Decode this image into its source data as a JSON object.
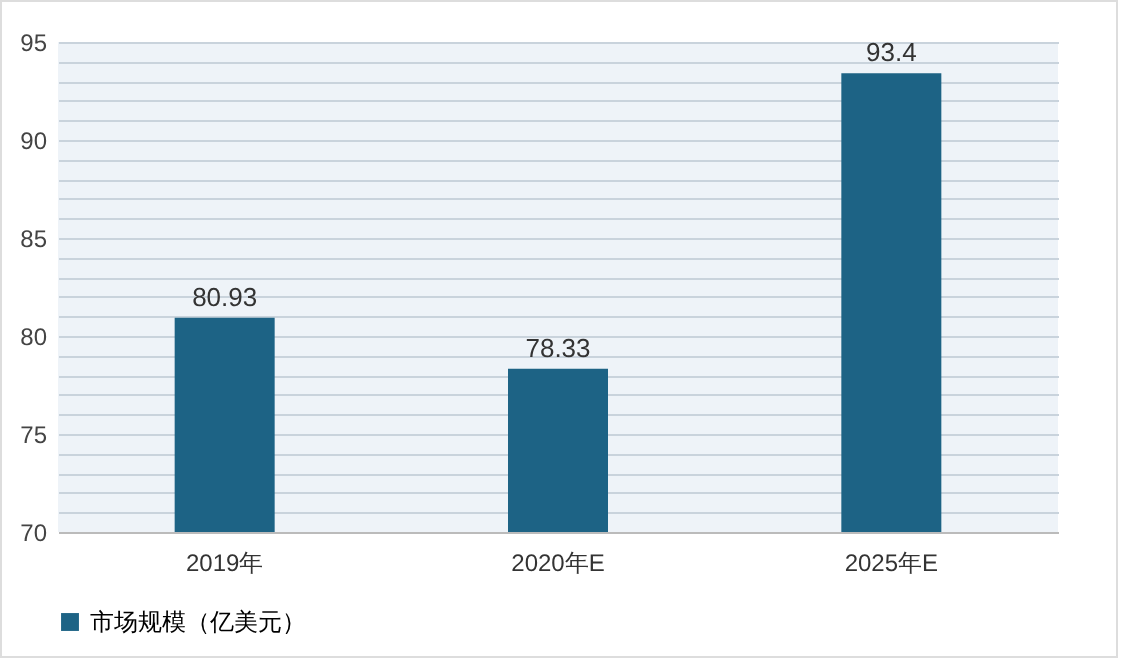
{
  "chart_data": {
    "type": "bar",
    "categories": [
      "2019年",
      "2020年E",
      "2025年E"
    ],
    "series": [
      {
        "name": "市场规模（亿美元）",
        "color": "#1d6385",
        "values": [
          80.93,
          78.33,
          93.4
        ]
      }
    ],
    "ylim": [
      70,
      95
    ],
    "yticks": [
      70,
      {
        "value": 71,
        "label": null
      },
      {
        "value": 72,
        "label": null
      },
      {
        "value": 73,
        "label": null
      },
      {
        "value": 74,
        "label": null
      },
      75,
      {
        "value": 76,
        "label": null
      },
      {
        "value": 77,
        "label": null
      },
      {
        "value": 78,
        "label": null
      },
      {
        "value": 79,
        "label": null
      },
      80,
      {
        "value": 81,
        "label": null
      },
      {
        "value": 82,
        "label": null
      },
      {
        "value": 83,
        "label": null
      },
      {
        "value": 84,
        "label": null
      },
      85,
      {
        "value": 86,
        "label": null
      },
      {
        "value": 87,
        "label": null
      },
      {
        "value": 88,
        "label": null
      },
      {
        "value": 89,
        "label": null
      },
      90,
      {
        "value": 91,
        "label": null
      },
      {
        "value": 92,
        "label": null
      },
      {
        "value": 93,
        "label": null
      },
      {
        "value": 94,
        "label": null
      },
      95
    ],
    "grid": "y",
    "legend": "bottom",
    "data_labels": true
  }
}
